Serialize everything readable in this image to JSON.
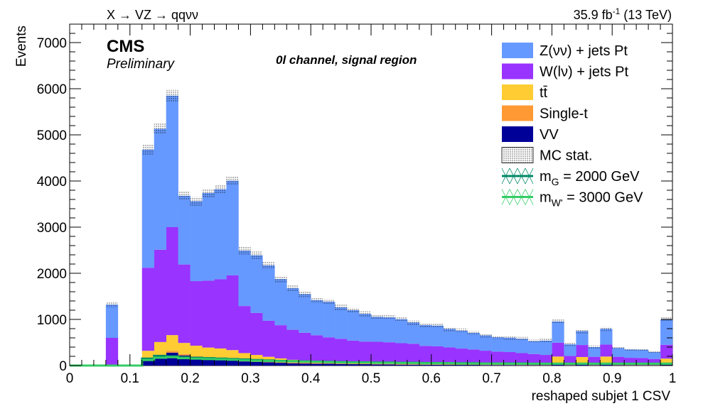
{
  "header": {
    "process": "X → VZ → qqνν",
    "lumi_value": "35.9 fb",
    "lumi_exp": "-1",
    "energy": "(13 TeV)"
  },
  "labels": {
    "cms": "CMS",
    "preliminary": "Preliminary",
    "channel": "0l channel, signal region"
  },
  "colors": {
    "znn": "#6699ff",
    "wln": "#9933ff",
    "ttbar": "#ffcc33",
    "single_t": "#ff9933",
    "vv": "#000099",
    "signal_g": "#008866",
    "signal_w": "#33cc66"
  },
  "legend": [
    {
      "key": "znn",
      "label": "Z(νν) + jets Pt",
      "type": "fill"
    },
    {
      "key": "wln",
      "label": "W(lν) + jets Pt",
      "type": "fill"
    },
    {
      "key": "ttbar",
      "label": "tt̄",
      "type": "fill"
    },
    {
      "key": "single_t",
      "label": "Single-t",
      "type": "fill"
    },
    {
      "key": "vv",
      "label": "VV",
      "type": "fill"
    },
    {
      "key": "mcstat",
      "label": "MC stat.",
      "type": "hatch"
    },
    {
      "key": "signal_g",
      "label": "m_G = 2000 GeV",
      "type": "signal",
      "main": "m",
      "sub": "G",
      "rest": " = 2000 GeV"
    },
    {
      "key": "signal_w",
      "label": "m_W' = 3000 GeV",
      "type": "signal",
      "main": "m",
      "sub": "W'",
      "rest": " = 3000 GeV"
    }
  ],
  "chart_data": {
    "type": "bar",
    "subtype": "stacked histogram",
    "xlabel": "reshaped subjet 1 CSV",
    "ylabel": "Events",
    "xlim": [
      0,
      1
    ],
    "ylim": [
      0,
      7400
    ],
    "x_ticks": [
      "0",
      "0.1",
      "0.2",
      "0.3",
      "0.4",
      "0.5",
      "0.6",
      "0.7",
      "0.8",
      "0.9",
      "1"
    ],
    "y_ticks": [
      "0",
      "1000",
      "2000",
      "3000",
      "4000",
      "5000",
      "6000",
      "7000"
    ],
    "bin_edges_start": 0.0,
    "bin_width": 0.02,
    "series": [
      {
        "key": "vv",
        "name": "VV",
        "values": [
          0,
          0,
          0,
          0,
          0,
          0,
          130,
          190,
          280,
          220,
          170,
          140,
          120,
          110,
          90,
          80,
          70,
          60,
          50,
          45,
          40,
          40,
          35,
          30,
          30,
          25,
          25,
          20,
          20,
          18,
          18,
          15,
          15,
          15,
          12,
          12,
          12,
          10,
          10,
          10,
          15,
          10,
          15,
          10,
          15,
          10,
          8,
          8,
          8,
          15
        ]
      },
      {
        "key": "single_t",
        "name": "Single-t",
        "values": [
          0,
          0,
          0,
          0,
          0,
          0,
          20,
          40,
          40,
          30,
          30,
          30,
          30,
          25,
          20,
          20,
          20,
          15,
          15,
          15,
          12,
          12,
          10,
          10,
          10,
          10,
          10,
          10,
          8,
          8,
          8,
          8,
          8,
          8,
          5,
          5,
          5,
          5,
          5,
          5,
          20,
          5,
          20,
          5,
          20,
          5,
          5,
          5,
          5,
          15
        ]
      },
      {
        "key": "ttbar",
        "name": "tt̄",
        "values": [
          0,
          0,
          0,
          0,
          0,
          0,
          170,
          280,
          340,
          240,
          230,
          220,
          220,
          200,
          160,
          130,
          100,
          80,
          60,
          50,
          45,
          40,
          35,
          30,
          30,
          30,
          30,
          25,
          25,
          20,
          20,
          20,
          15,
          15,
          15,
          15,
          15,
          15,
          15,
          15,
          160,
          15,
          150,
          15,
          160,
          15,
          15,
          20,
          20,
          120
        ]
      },
      {
        "key": "wln",
        "name": "W(lν) + jets Pt",
        "values": [
          0,
          0,
          0,
          600,
          0,
          0,
          1800,
          2000,
          2340,
          1700,
          1400,
          1450,
          1500,
          1620,
          1020,
          910,
          780,
          720,
          650,
          600,
          560,
          520,
          500,
          470,
          450,
          450,
          440,
          430,
          420,
          380,
          370,
          350,
          330,
          310,
          290,
          270,
          260,
          240,
          220,
          200,
          300,
          180,
          260,
          160,
          260,
          160,
          140,
          130,
          110,
          300
        ]
      },
      {
        "key": "znn",
        "name": "Z(νν) + jets Pt",
        "values": [
          0,
          0,
          0,
          720,
          0,
          0,
          2560,
          2620,
          2850,
          1490,
          1730,
          1900,
          1950,
          2050,
          1200,
          1250,
          1200,
          1000,
          900,
          840,
          760,
          770,
          680,
          660,
          600,
          540,
          540,
          520,
          460,
          450,
          450,
          400,
          390,
          360,
          330,
          310,
          310,
          310,
          280,
          310,
          460,
          250,
          300,
          210,
          340,
          190,
          180,
          180,
          150,
          550
        ]
      }
    ],
    "stack_order": [
      "vv",
      "single_t",
      "ttbar",
      "wln",
      "znn"
    ],
    "mc_stat_uncertainty": "hatched band on top of stack",
    "signals": [
      {
        "key": "signal_g",
        "name": "m_G = 2000 GeV",
        "values": [
          0,
          0,
          0,
          0,
          0,
          0,
          150,
          210,
          200,
          180,
          170,
          160,
          150,
          140,
          130,
          120,
          110,
          100,
          95,
          90,
          85,
          80,
          75,
          70,
          70,
          65,
          65,
          60,
          60,
          55,
          55,
          50,
          50,
          50,
          45,
          45,
          45,
          45,
          40,
          40,
          40,
          40,
          40,
          40,
          40,
          40,
          40,
          40,
          40,
          40
        ]
      },
      {
        "key": "signal_w",
        "name": "m_W' = 3000 GeV",
        "values": [
          0,
          0,
          0,
          0,
          0,
          0,
          120,
          170,
          180,
          160,
          150,
          140,
          135,
          125,
          115,
          105,
          100,
          95,
          90,
          85,
          80,
          75,
          70,
          65,
          65,
          60,
          60,
          55,
          55,
          50,
          50,
          50,
          45,
          45,
          45,
          45,
          40,
          40,
          40,
          40,
          40,
          40,
          40,
          40,
          40,
          40,
          40,
          40,
          40,
          40
        ]
      }
    ]
  }
}
